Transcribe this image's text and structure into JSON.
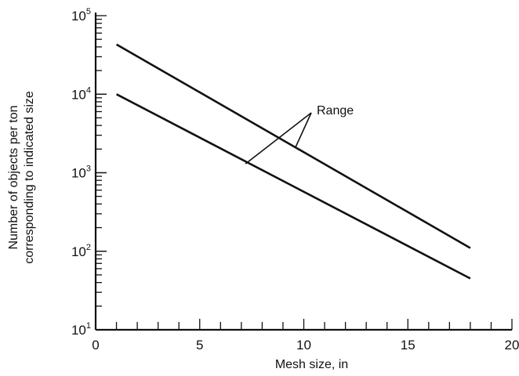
{
  "chart_data": {
    "type": "line",
    "xlabel": "Mesh size, in",
    "ylabel_lines": [
      "Number of objects per ton",
      "corresponding to indicated size"
    ],
    "xlim": [
      0,
      20
    ],
    "ylim": [
      10,
      100000
    ],
    "y_scale": "log",
    "x_ticks": [
      0,
      5,
      10,
      15,
      20
    ],
    "x_tick_labels": [
      "0",
      "5",
      "10",
      "15",
      "20"
    ],
    "y_ticks": [
      10,
      100,
      1000,
      10000,
      100000
    ],
    "y_tick_labels": [
      {
        "base": "10",
        "exp": "1"
      },
      {
        "base": "10",
        "exp": "2"
      },
      {
        "base": "10",
        "exp": "3"
      },
      {
        "base": "10",
        "exp": "4"
      },
      {
        "base": "10",
        "exp": "5"
      }
    ],
    "series": [
      {
        "x": [
          1,
          18
        ],
        "y": [
          43000,
          110
        ]
      },
      {
        "x": [
          1,
          18
        ],
        "y": [
          10000,
          45
        ]
      }
    ],
    "annotations": [
      {
        "text": "Range",
        "points_to": [
          [
            7.2,
            1300
          ],
          [
            9.6,
            2100
          ]
        ]
      }
    ],
    "grid": false,
    "line_color": "#111111"
  }
}
